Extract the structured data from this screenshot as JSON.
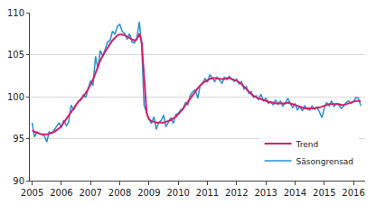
{
  "chart_data": {
    "type": "line",
    "x": [
      2005,
      2005.08,
      2005.17,
      2005.25,
      2005.33,
      2005.42,
      2005.5,
      2005.58,
      2005.67,
      2005.75,
      2005.83,
      2005.92,
      2006,
      2006.08,
      2006.17,
      2006.25,
      2006.33,
      2006.42,
      2006.5,
      2006.58,
      2006.67,
      2006.75,
      2006.83,
      2006.92,
      2007,
      2007.08,
      2007.17,
      2007.25,
      2007.33,
      2007.42,
      2007.5,
      2007.58,
      2007.67,
      2007.75,
      2007.83,
      2007.92,
      2008,
      2008.08,
      2008.17,
      2008.25,
      2008.33,
      2008.42,
      2008.5,
      2008.58,
      2008.67,
      2008.75,
      2008.83,
      2008.92,
      2009,
      2009.08,
      2009.17,
      2009.25,
      2009.33,
      2009.42,
      2009.5,
      2009.58,
      2009.67,
      2009.75,
      2009.83,
      2009.92,
      2010,
      2010.08,
      2010.17,
      2010.25,
      2010.33,
      2010.42,
      2010.5,
      2010.58,
      2010.67,
      2010.75,
      2010.83,
      2010.92,
      2011,
      2011.08,
      2011.17,
      2011.25,
      2011.33,
      2011.42,
      2011.5,
      2011.58,
      2011.67,
      2011.75,
      2011.83,
      2011.92,
      2012,
      2012.08,
      2012.17,
      2012.25,
      2012.33,
      2012.42,
      2012.5,
      2012.58,
      2012.67,
      2012.75,
      2012.83,
      2012.92,
      2013,
      2013.08,
      2013.17,
      2013.25,
      2013.33,
      2013.42,
      2013.5,
      2013.58,
      2013.67,
      2013.75,
      2013.83,
      2013.92,
      2014,
      2014.08,
      2014.17,
      2014.25,
      2014.33,
      2014.42,
      2014.5,
      2014.58,
      2014.67,
      2014.75,
      2014.83,
      2014.92,
      2015,
      2015.08,
      2015.17,
      2015.25,
      2015.33,
      2015.42,
      2015.5,
      2015.58,
      2015.67,
      2015.75,
      2015.83,
      2015.92,
      2016,
      2016.08,
      2016.17,
      2016.25
    ],
    "series": [
      {
        "name": "Trend",
        "color": "#d61f69",
        "values": [
          96.0,
          95.8,
          95.7,
          95.6,
          95.5,
          95.5,
          95.5,
          95.6,
          95.7,
          95.8,
          96.0,
          96.2,
          96.5,
          96.9,
          97.3,
          97.8,
          98.2,
          98.6,
          99.0,
          99.4,
          99.7,
          100.0,
          100.4,
          100.9,
          101.4,
          102.0,
          102.8,
          103.6,
          104.3,
          104.9,
          105.4,
          105.9,
          106.3,
          106.7,
          107.0,
          107.3,
          107.4,
          107.4,
          107.3,
          107.1,
          107.0,
          106.8,
          106.7,
          106.8,
          107.5,
          106.5,
          102.5,
          98.0,
          97.3,
          97.1,
          97.0,
          96.9,
          96.9,
          96.9,
          96.9,
          97.0,
          97.1,
          97.2,
          97.4,
          97.6,
          97.9,
          98.2,
          98.6,
          99.0,
          99.4,
          99.8,
          100.2,
          100.6,
          101.0,
          101.3,
          101.6,
          101.8,
          102.0,
          102.1,
          102.2,
          102.2,
          102.2,
          102.1,
          102.1,
          102.1,
          102.2,
          102.2,
          102.1,
          102.0,
          101.9,
          101.7,
          101.5,
          101.2,
          100.9,
          100.6,
          100.3,
          100.1,
          99.9,
          99.8,
          99.7,
          99.6,
          99.5,
          99.4,
          99.3,
          99.3,
          99.2,
          99.2,
          99.2,
          99.2,
          99.2,
          99.3,
          99.2,
          99.1,
          99.0,
          98.9,
          98.8,
          98.7,
          98.6,
          98.6,
          98.6,
          98.6,
          98.6,
          98.7,
          98.7,
          98.8,
          98.9,
          99.0,
          99.1,
          99.1,
          99.1,
          99.1,
          99.1,
          99.0,
          99.0,
          99.1,
          99.2,
          99.3,
          99.4,
          99.5,
          99.5,
          99.4
        ]
      },
      {
        "name": "Säsongrensad",
        "color": "#2a8fd4",
        "values": [
          96.9,
          95.2,
          95.8,
          95.6,
          95.5,
          95.3,
          94.6,
          95.8,
          95.6,
          96.0,
          96.4,
          96.9,
          96.3,
          97.2,
          96.5,
          97.0,
          99.0,
          98.4,
          99.0,
          99.4,
          99.6,
          100.2,
          99.9,
          101.0,
          101.9,
          101.3,
          104.8,
          103.3,
          105.5,
          104.8,
          105.7,
          106.5,
          106.7,
          107.8,
          107.4,
          108.4,
          108.6,
          107.8,
          107.5,
          106.8,
          107.5,
          106.5,
          106.4,
          106.9,
          108.9,
          106.0,
          99.0,
          98.0,
          97.3,
          96.8,
          97.6,
          96.1,
          96.9,
          97.2,
          97.8,
          96.4,
          97.0,
          97.5,
          96.8,
          97.9,
          98.0,
          98.4,
          98.6,
          99.3,
          99.0,
          100.2,
          100.6,
          100.8,
          99.8,
          101.3,
          101.5,
          102.2,
          101.7,
          102.6,
          102.2,
          101.8,
          102.3,
          101.9,
          101.6,
          102.3,
          102.0,
          102.4,
          102.1,
          101.8,
          102.1,
          101.5,
          101.8,
          100.9,
          101.2,
          100.4,
          100.6,
          99.9,
          100.1,
          99.6,
          100.3,
          99.5,
          99.8,
          99.2,
          99.4,
          99.0,
          99.6,
          99.1,
          99.5,
          98.9,
          99.3,
          99.8,
          99.2,
          98.7,
          99.2,
          98.4,
          98.8,
          98.3,
          98.9,
          98.5,
          98.4,
          98.9,
          98.5,
          98.7,
          98.2,
          97.5,
          98.6,
          99.3,
          98.9,
          99.5,
          98.8,
          99.2,
          99.0,
          98.6,
          98.9,
          99.3,
          99.5,
          99.2,
          99.4,
          99.9,
          99.8,
          98.9
        ]
      }
    ],
    "xlim": [
      2004.92,
      2016.4
    ],
    "xticks": [
      2005,
      2006,
      2007,
      2008,
      2009,
      2010,
      2011,
      2012,
      2013,
      2014,
      2015,
      2016
    ],
    "ylim": [
      90,
      110
    ],
    "yticks": [
      90,
      95,
      100,
      105,
      110
    ],
    "grid": true,
    "legend": "lower right"
  }
}
